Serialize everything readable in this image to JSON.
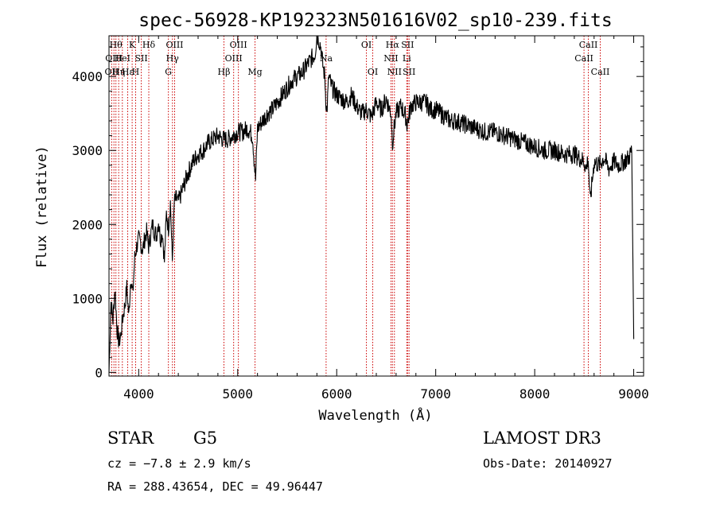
{
  "chart_data": {
    "type": "line",
    "title": "spec-56928-KP192323N501616V02_sp10-239.fits",
    "xlabel": "Wavelength (Å)",
    "ylabel": "Flux (relative)",
    "xlim": [
      3700,
      9100
    ],
    "ylim": [
      -50,
      4550
    ],
    "xticks": [
      4000,
      5000,
      6000,
      7000,
      8000,
      9000
    ],
    "yticks": [
      0,
      1000,
      2000,
      3000,
      4000
    ],
    "grid": false,
    "line_color": "#000000",
    "marker_color": "#cc0000",
    "series": [
      {
        "x": [
          3700,
          3720,
          3740,
          3760,
          3780,
          3800,
          3820,
          3840,
          3860,
          3880,
          3900,
          3920,
          3940,
          3960,
          3980,
          4000,
          4020,
          4040,
          4060,
          4080,
          4100,
          4120,
          4140,
          4160,
          4180,
          4200,
          4220,
          4240,
          4260,
          4280,
          4300,
          4320,
          4340,
          4360,
          4380,
          4400,
          4450,
          4500,
          4550,
          4600,
          4650,
          4700,
          4750,
          4800,
          4850,
          4900,
          4950,
          5000,
          5050,
          5100,
          5150,
          5180,
          5200,
          5250,
          5300,
          5350,
          5400,
          5450,
          5500,
          5550,
          5600,
          5650,
          5700,
          5750,
          5780,
          5800,
          5820,
          5840,
          5860,
          5880,
          5890,
          5900,
          5920,
          5950,
          6000,
          6050,
          6100,
          6150,
          6200,
          6250,
          6300,
          6350,
          6400,
          6450,
          6500,
          6550,
          6563,
          6580,
          6600,
          6650,
          6700,
          6710,
          6750,
          6800,
          6850,
          6900,
          6950,
          7000,
          7050,
          7100,
          7150,
          7200,
          7300,
          7400,
          7500,
          7600,
          7700,
          7800,
          7900,
          8000,
          8100,
          8200,
          8300,
          8400,
          8450,
          8500,
          8520,
          8540,
          8560,
          8600,
          8650,
          8700,
          8750,
          8800,
          8850,
          8900,
          8950,
          8980,
          9000
        ],
        "y": [
          0,
          950,
          700,
          1150,
          600,
          400,
          500,
          750,
          900,
          1150,
          750,
          1300,
          1050,
          1550,
          1700,
          1800,
          1750,
          1650,
          1800,
          1900,
          1700,
          1850,
          2000,
          1900,
          1850,
          2050,
          1800,
          1900,
          1500,
          2150,
          1950,
          2300,
          1500,
          2300,
          2350,
          2300,
          2500,
          2700,
          2850,
          2950,
          3000,
          3100,
          3150,
          3200,
          3150,
          3150,
          3200,
          3250,
          3250,
          3300,
          3200,
          2600,
          3300,
          3400,
          3500,
          3550,
          3650,
          3750,
          3850,
          3950,
          4000,
          4050,
          4150,
          4250,
          4300,
          4550,
          4500,
          4400,
          4150,
          4000,
          3700,
          3500,
          4000,
          3850,
          3750,
          3700,
          3650,
          3750,
          3600,
          3500,
          3550,
          3450,
          3650,
          3550,
          3700,
          3500,
          3100,
          3300,
          3500,
          3600,
          3450,
          3350,
          3600,
          3650,
          3650,
          3650,
          3550,
          3550,
          3500,
          3450,
          3400,
          3400,
          3350,
          3300,
          3250,
          3250,
          3200,
          3150,
          3100,
          3050,
          3000,
          3000,
          2950,
          2950,
          2900,
          2850,
          2750,
          2900,
          2300,
          2850,
          2800,
          2900,
          2750,
          2850,
          2800,
          2850,
          2900,
          3000,
          450
        ]
      }
    ],
    "lines": [
      {
        "x": 3727,
        "label": "OII",
        "row": 2
      },
      {
        "x": 3750,
        "label": "OIII",
        "row": 1
      },
      {
        "x": 3770,
        "label": "Hθ",
        "row": 0
      },
      {
        "x": 3798,
        "label": "Hη",
        "row": 2
      },
      {
        "x": 3835,
        "label": "HeI",
        "row": 1
      },
      {
        "x": 3889,
        "label": "Hε",
        "row": 2
      },
      {
        "x": 3934,
        "label": "K",
        "row": 0
      },
      {
        "x": 3969,
        "label": "H",
        "row": 2
      },
      {
        "x": 4026,
        "label": "SII",
        "row": 1
      },
      {
        "x": 4102,
        "label": "Hδ",
        "row": 0
      },
      {
        "x": 4300,
        "label": "G",
        "row": 2
      },
      {
        "x": 4341,
        "label": "Hγ",
        "row": 1
      },
      {
        "x": 4363,
        "label": "OIII",
        "row": 0
      },
      {
        "x": 4861,
        "label": "Hβ",
        "row": 2
      },
      {
        "x": 4959,
        "label": "OIII",
        "row": 1
      },
      {
        "x": 5007,
        "label": "OIII",
        "row": 0
      },
      {
        "x": 5175,
        "label": "Mg",
        "row": 2
      },
      {
        "x": 5893,
        "label": "Na",
        "row": 1
      },
      {
        "x": 6300,
        "label": "OI",
        "row": 0
      },
      {
        "x": 6364,
        "label": "OI",
        "row": 2
      },
      {
        "x": 6548,
        "label": "NII",
        "row": 1
      },
      {
        "x": 6563,
        "label": "Hα",
        "row": 0
      },
      {
        "x": 6583,
        "label": "NII",
        "row": 2
      },
      {
        "x": 6708,
        "label": "Li",
        "row": 1
      },
      {
        "x": 6716,
        "label": "SII",
        "row": 0
      },
      {
        "x": 6731,
        "label": "SII",
        "row": 2
      },
      {
        "x": 8498,
        "label": "CaII",
        "row": 1
      },
      {
        "x": 8542,
        "label": "CaII",
        "row": 0
      },
      {
        "x": 8662,
        "label": "CaII",
        "row": 2
      }
    ]
  },
  "info": {
    "object_class": "STAR",
    "subclass": "G5",
    "survey": "LAMOST DR3",
    "cz": "cz = −7.8 ± 2.9 km/s",
    "obs_date": "Obs-Date: 20140927",
    "radec": "RA = 288.43654, DEC =  49.96447"
  }
}
